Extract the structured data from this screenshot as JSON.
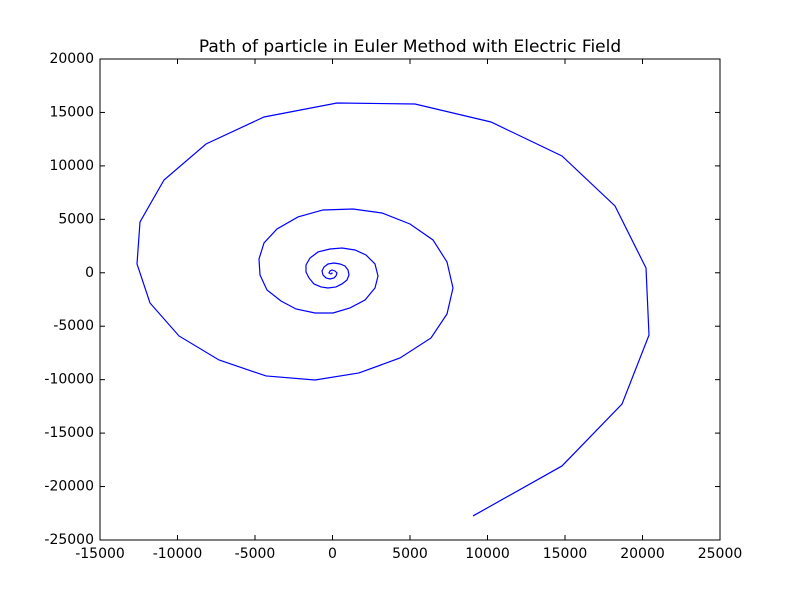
{
  "chart_data": {
    "type": "line",
    "title": "Path of particle in Euler Method with Electric Field",
    "series": [
      {
        "color": "#0000ff",
        "x": [
          0,
          -97,
          -226,
          -161,
          -32,
          161,
          290,
          226,
          97,
          -161,
          -419,
          -613,
          -677,
          -548,
          -290,
          97,
          484,
          806,
          1000,
          1065,
          935,
          613,
          226,
          -290,
          -742,
          -1194,
          -1516,
          -1710,
          -1710,
          -1452,
          -935,
          -161,
          613,
          1452,
          2161,
          2742,
          2935,
          2742,
          2097,
          1129,
          32,
          -1129,
          -2355,
          -3323,
          -4226,
          -4677,
          -4742,
          -4419,
          -3581,
          -2226,
          -613,
          1323,
          3194,
          5000,
          6484,
          7387,
          7774,
          7387,
          6355,
          4355,
          1710,
          -1129,
          -4290,
          -7323,
          -9903,
          -11774,
          -12613,
          -12419,
          -10871,
          -8161,
          -4419,
          290,
          5323,
          10226,
          14806,
          18226,
          20226,
          20419,
          18677,
          14806,
          9065
        ],
        "values": [
          0,
          -112,
          -19,
          168,
          262,
          168,
          -19,
          -299,
          -486,
          -580,
          -486,
          -206,
          168,
          543,
          823,
          917,
          823,
          636,
          262,
          -206,
          -673,
          -1047,
          -1328,
          -1421,
          -1328,
          -1047,
          -486,
          75,
          729,
          1384,
          1946,
          2226,
          2320,
          2133,
          1665,
          823,
          -299,
          -1421,
          -2544,
          -3292,
          -3760,
          -3760,
          -3386,
          -2638,
          -1609,
          -206,
          1291,
          2788,
          4097,
          5220,
          5875,
          5968,
          5594,
          4565,
          3068,
          1010,
          -1421,
          -3853,
          -6099,
          -7970,
          -9373,
          -10028,
          -9654,
          -8157,
          -5912,
          -2825,
          823,
          4752,
          8681,
          12049,
          14575,
          15884,
          15790,
          14107,
          10926,
          6249,
          449,
          -5832,
          -12286,
          -18073,
          -22750
        ]
      }
    ],
    "xlim": [
      -15000,
      25000
    ],
    "xticks": [
      -15000,
      -10000,
      -5000,
      0,
      5000,
      10000,
      15000,
      20000,
      25000
    ],
    "ylim": [
      -25000,
      20000
    ],
    "yticks": [
      -25000,
      -20000,
      -15000,
      -10000,
      -5000,
      0,
      5000,
      10000,
      15000,
      20000
    ],
    "grid": false
  }
}
